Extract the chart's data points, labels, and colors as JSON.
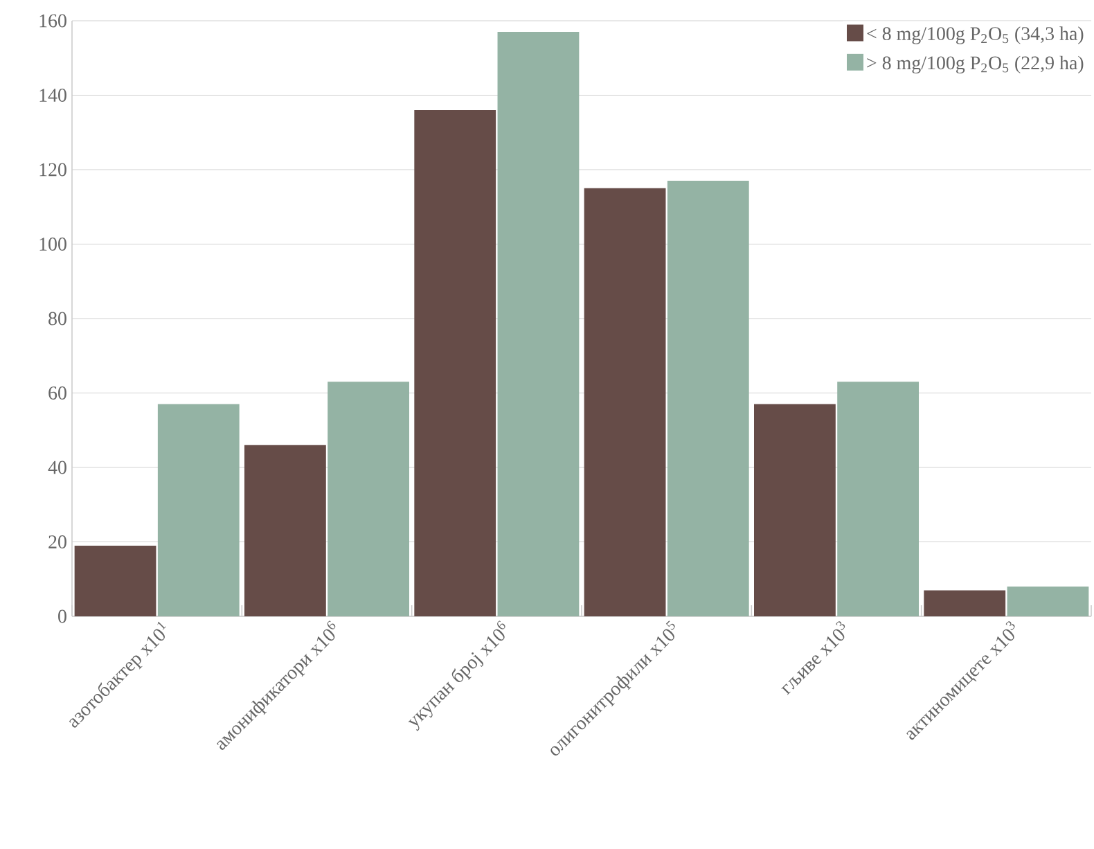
{
  "chart_data": {
    "type": "bar",
    "categories": [
      "азотобактер x10$^{1}$",
      "амонификатори x10$^{6}$",
      "укупан број x10$^{6}$",
      "олигонитрофили x10$^{5}$",
      "гљиве x10$^{3}$",
      "актиномицете x10$^{3}$"
    ],
    "series": [
      {
        "name": "< 8 mg/100g P$_{2}$O$_{5}$ (34,3 ha)",
        "color": "#664c48",
        "values": [
          19,
          46,
          136,
          115,
          57,
          7
        ]
      },
      {
        "name": "> 8 mg/100g P$_{2}$O$_{5}$  (22,9 ha)",
        "color": "#94b3a4",
        "values": [
          57,
          63,
          157,
          117,
          63,
          8
        ]
      }
    ],
    "ylim": [
      0,
      160
    ],
    "yticks": [
      0,
      20,
      40,
      60,
      80,
      100,
      120,
      140,
      160
    ],
    "grid": "y",
    "legend": "top right"
  }
}
